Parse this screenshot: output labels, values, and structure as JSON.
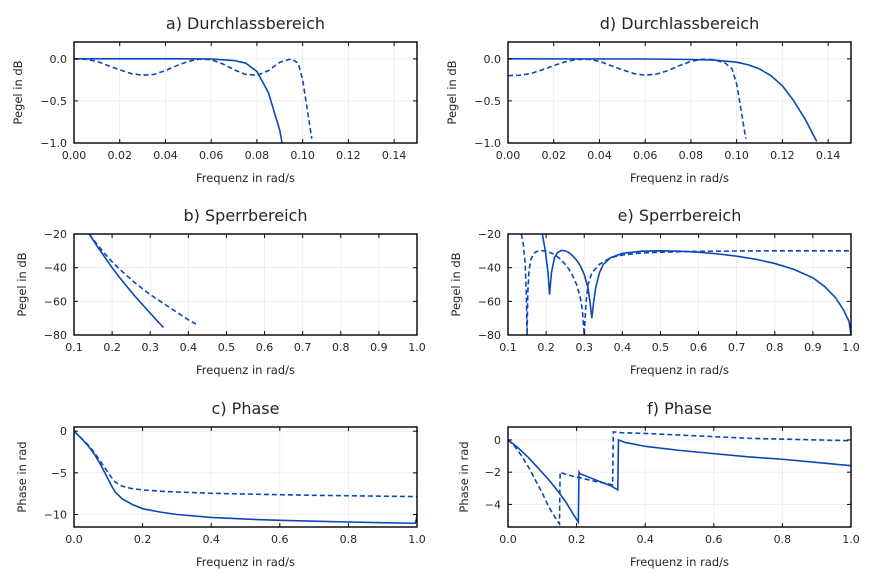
{
  "colors": {
    "series": "#0a47b7",
    "grid": "#ebebeb"
  },
  "chart_data": [
    {
      "id": "a",
      "type": "line",
      "title": "a) Durchlassbereich",
      "xlabel": "Frequenz in rad/s",
      "ylabel": "Pegel in dB",
      "xlim": [
        0,
        0.15
      ],
      "ylim": [
        -1,
        0.2
      ],
      "xticks": [
        0,
        0.02,
        0.04,
        0.06,
        0.08,
        0.1,
        0.12,
        0.14
      ],
      "xticklabels": [
        "0.00",
        "0.02",
        "0.04",
        "0.06",
        "0.08",
        "0.10",
        "0.12",
        "0.14"
      ],
      "yticks": [
        -1,
        -0.5,
        0
      ],
      "yticklabels": [
        "−1.0",
        "−0.5",
        "0.0"
      ],
      "series": [
        {
          "style": "solid",
          "x": [
            0,
            0.05,
            0.06,
            0.07,
            0.075,
            0.08,
            0.085,
            0.09,
            0.091
          ],
          "y": [
            0,
            0,
            -0.002,
            -0.02,
            -0.05,
            -0.15,
            -0.4,
            -0.85,
            -1.0
          ]
        },
        {
          "style": "dashed",
          "x": [
            0,
            0.005,
            0.01,
            0.015,
            0.02,
            0.025,
            0.03,
            0.035,
            0.04,
            0.045,
            0.05,
            0.055,
            0.06,
            0.065,
            0.07,
            0.075,
            0.08,
            0.085,
            0.09,
            0.095,
            0.098,
            0.1,
            0.102,
            0.104
          ],
          "y": [
            0,
            -0.005,
            -0.03,
            -0.08,
            -0.13,
            -0.175,
            -0.195,
            -0.185,
            -0.14,
            -0.08,
            -0.03,
            -0.002,
            -0.01,
            -0.06,
            -0.13,
            -0.185,
            -0.195,
            -0.14,
            -0.04,
            0,
            -0.05,
            -0.25,
            -0.6,
            -0.95
          ]
        }
      ]
    },
    {
      "id": "d",
      "type": "line",
      "title": "d) Durchlassbereich",
      "xlabel": "Frequenz in rad/s",
      "ylabel": "Pegel in dB",
      "xlim": [
        0,
        0.15
      ],
      "ylim": [
        -1,
        0.2
      ],
      "xticks": [
        0,
        0.02,
        0.04,
        0.06,
        0.08,
        0.1,
        0.12,
        0.14
      ],
      "xticklabels": [
        "0.00",
        "0.02",
        "0.04",
        "0.06",
        "0.08",
        "0.10",
        "0.12",
        "0.14"
      ],
      "yticks": [
        -1,
        -0.5,
        0
      ],
      "yticklabels": [
        "−1.0",
        "−0.5",
        "0.0"
      ],
      "series": [
        {
          "style": "solid",
          "x": [
            0,
            0.06,
            0.08,
            0.09,
            0.1,
            0.105,
            0.11,
            0.115,
            0.12,
            0.125,
            0.13,
            0.135
          ],
          "y": [
            0,
            -0.002,
            -0.008,
            -0.015,
            -0.04,
            -0.07,
            -0.12,
            -0.2,
            -0.32,
            -0.5,
            -0.72,
            -0.98
          ]
        },
        {
          "style": "dashed",
          "x": [
            0,
            0.005,
            0.01,
            0.015,
            0.02,
            0.025,
            0.03,
            0.035,
            0.04,
            0.045,
            0.05,
            0.055,
            0.06,
            0.065,
            0.07,
            0.075,
            0.08,
            0.085,
            0.09,
            0.095,
            0.098,
            0.1,
            0.102,
            0.104
          ],
          "y": [
            -0.2,
            -0.195,
            -0.175,
            -0.13,
            -0.08,
            -0.035,
            -0.008,
            -0.005,
            -0.03,
            -0.08,
            -0.13,
            -0.175,
            -0.195,
            -0.18,
            -0.14,
            -0.08,
            -0.03,
            -0.005,
            -0.01,
            -0.05,
            -0.12,
            -0.3,
            -0.62,
            -0.95
          ]
        }
      ]
    },
    {
      "id": "b",
      "type": "line",
      "title": "b) Sperrbereich",
      "xlabel": "Frequenz in rad/s",
      "ylabel": "Pegel in dB",
      "xlim": [
        0.1,
        1.0
      ],
      "ylim": [
        -80,
        -20
      ],
      "xticks": [
        0.1,
        0.2,
        0.3,
        0.4,
        0.5,
        0.6,
        0.7,
        0.8,
        0.9,
        1.0
      ],
      "xticklabels": [
        "0.1",
        "0.2",
        "0.3",
        "0.4",
        "0.5",
        "0.6",
        "0.7",
        "0.8",
        "0.9",
        "1.0"
      ],
      "yticks": [
        -80,
        -60,
        -40,
        -20
      ],
      "yticklabels": [
        "−80",
        "−60",
        "−40",
        "−20"
      ],
      "series": [
        {
          "style": "solid",
          "x": [
            0.14,
            0.16,
            0.18,
            0.2,
            0.22,
            0.24,
            0.26,
            0.28,
            0.3,
            0.32,
            0.335
          ],
          "y": [
            -20,
            -27,
            -33.5,
            -40,
            -46,
            -51.5,
            -57,
            -62,
            -67,
            -72,
            -75.5
          ]
        },
        {
          "style": "dashed",
          "x": [
            0.14,
            0.16,
            0.18,
            0.2,
            0.22,
            0.24,
            0.26,
            0.28,
            0.3,
            0.32,
            0.34,
            0.36,
            0.38,
            0.4,
            0.42
          ],
          "y": [
            -20,
            -26,
            -31.5,
            -36.5,
            -41,
            -45,
            -49,
            -52.5,
            -56,
            -59,
            -62,
            -65,
            -68,
            -71,
            -73.5
          ]
        }
      ]
    },
    {
      "id": "e",
      "type": "line",
      "title": "e) Sperrbereich",
      "xlabel": "Frequenz in rad/s",
      "ylabel": "Pegel in dB",
      "xlim": [
        0.1,
        1.0
      ],
      "ylim": [
        -80,
        -20
      ],
      "xticks": [
        0.1,
        0.2,
        0.3,
        0.4,
        0.5,
        0.6,
        0.7,
        0.8,
        0.9,
        1.0
      ],
      "xticklabels": [
        "0.1",
        "0.2",
        "0.3",
        "0.4",
        "0.5",
        "0.6",
        "0.7",
        "0.8",
        "0.9",
        "1.0"
      ],
      "yticks": [
        -80,
        -60,
        -40,
        -20
      ],
      "yticklabels": [
        "−80",
        "−60",
        "−40",
        "−20"
      ],
      "series": [
        {
          "style": "solid",
          "x": [
            0.19,
            0.198,
            0.205,
            0.209,
            0.214,
            0.222,
            0.23,
            0.24,
            0.25,
            0.26,
            0.27,
            0.28,
            0.29,
            0.3,
            0.31,
            0.315,
            0.32,
            0.325,
            0.33,
            0.34,
            0.35,
            0.37,
            0.4,
            0.45,
            0.5,
            0.55,
            0.6,
            0.65,
            0.7,
            0.75,
            0.8,
            0.85,
            0.9,
            0.93,
            0.96,
            0.98,
            0.995,
            1.0
          ],
          "y": [
            -20,
            -30,
            -43,
            -56,
            -43,
            -34,
            -31,
            -29.8,
            -30,
            -31,
            -33,
            -35.5,
            -39,
            -44,
            -52,
            -60,
            -70,
            -60,
            -52,
            -43,
            -38,
            -34,
            -31.5,
            -30.2,
            -30,
            -30.2,
            -30.8,
            -31.8,
            -33.2,
            -35,
            -37.5,
            -41,
            -46,
            -51,
            -58,
            -65,
            -72,
            -80
          ]
        },
        {
          "style": "dashed",
          "x": [
            0.135,
            0.14,
            0.145,
            0.148,
            0.15,
            0.152,
            0.155,
            0.16,
            0.17,
            0.18,
            0.19,
            0.2,
            0.21,
            0.22,
            0.23,
            0.24,
            0.25,
            0.26,
            0.27,
            0.28,
            0.29,
            0.295,
            0.3,
            0.302,
            0.305,
            0.31,
            0.32,
            0.34,
            0.37,
            0.4,
            0.45,
            0.5,
            0.6,
            0.7,
            0.8,
            0.9,
            1.0
          ],
          "y": [
            -20,
            -26,
            -37,
            -55,
            -80,
            -55,
            -42,
            -35,
            -31,
            -30,
            -29.9,
            -30.2,
            -31,
            -32,
            -33.5,
            -35.5,
            -38,
            -41,
            -45,
            -50,
            -58,
            -65,
            -80,
            -72,
            -60,
            -50,
            -43,
            -38,
            -34,
            -32.5,
            -31.3,
            -30.8,
            -30.3,
            -30.1,
            -30,
            -30,
            -30
          ]
        }
      ]
    },
    {
      "id": "c",
      "type": "line",
      "title": "c) Phase",
      "xlabel": "Frequenz in rad/s",
      "ylabel": "Phase in rad",
      "xlim": [
        0,
        1.0
      ],
      "ylim": [
        -11.5,
        0.5
      ],
      "xticks": [
        0,
        0.2,
        0.4,
        0.6,
        0.8,
        1.0
      ],
      "xticklabels": [
        "0.0",
        "0.2",
        "0.4",
        "0.6",
        "0.8",
        "1.0"
      ],
      "yticks": [
        -10,
        -5,
        0
      ],
      "yticklabels": [
        "−10",
        "−5",
        "0"
      ],
      "series": [
        {
          "style": "solid",
          "x": [
            0,
            0.02,
            0.04,
            0.06,
            0.08,
            0.1,
            0.11,
            0.12,
            0.14,
            0.17,
            0.2,
            0.25,
            0.3,
            0.4,
            0.5,
            0.6,
            0.7,
            0.8,
            0.9,
            0.995,
            0.999,
            1.0
          ],
          "y": [
            0,
            -0.8,
            -1.7,
            -2.8,
            -4.2,
            -5.8,
            -6.6,
            -7.3,
            -8.1,
            -8.8,
            -9.3,
            -9.7,
            -10.0,
            -10.35,
            -10.55,
            -10.7,
            -10.8,
            -10.9,
            -10.98,
            -11.05,
            -10.4,
            -9.8
          ]
        },
        {
          "style": "dashed",
          "x": [
            0,
            0.02,
            0.04,
            0.06,
            0.08,
            0.1,
            0.11,
            0.12,
            0.14,
            0.17,
            0.2,
            0.25,
            0.3,
            0.4,
            0.5,
            0.6,
            0.7,
            0.8,
            0.9,
            1.0
          ],
          "y": [
            0,
            -0.8,
            -1.6,
            -2.6,
            -3.8,
            -5.0,
            -5.6,
            -6.1,
            -6.6,
            -6.9,
            -7.05,
            -7.2,
            -7.3,
            -7.45,
            -7.55,
            -7.62,
            -7.7,
            -7.75,
            -7.8,
            -7.85
          ]
        }
      ]
    },
    {
      "id": "f",
      "type": "line",
      "title": "f) Phase",
      "xlabel": "Frequenz in rad/s",
      "ylabel": "Phase in rad",
      "xlim": [
        0,
        1.0
      ],
      "ylim": [
        -5.4,
        0.8
      ],
      "xticks": [
        0,
        0.2,
        0.4,
        0.6,
        0.8,
        1.0
      ],
      "xticklabels": [
        "0.0",
        "0.2",
        "0.4",
        "0.6",
        "0.8",
        "1.0"
      ],
      "yticks": [
        -4,
        -2,
        0
      ],
      "yticklabels": [
        "−4",
        "−2",
        "0"
      ],
      "series": [
        {
          "style": "solid",
          "x": [
            0,
            0.03,
            0.06,
            0.09,
            0.12,
            0.15,
            0.17,
            0.19,
            0.205,
            0.207,
            0.21,
            0.24,
            0.27,
            0.3,
            0.32,
            0.322,
            0.34,
            0.4,
            0.5,
            0.6,
            0.7,
            0.8,
            0.9,
            1.0
          ],
          "y": [
            0,
            -0.5,
            -1.1,
            -1.8,
            -2.5,
            -3.3,
            -3.9,
            -4.6,
            -5.1,
            -2.0,
            -2.1,
            -2.35,
            -2.6,
            -2.85,
            -3.1,
            0.0,
            -0.15,
            -0.4,
            -0.65,
            -0.85,
            -1.05,
            -1.2,
            -1.4,
            -1.6
          ]
        },
        {
          "style": "dashed",
          "x": [
            0,
            0.02,
            0.04,
            0.06,
            0.08,
            0.1,
            0.12,
            0.14,
            0.15,
            0.152,
            0.17,
            0.2,
            0.23,
            0.26,
            0.29,
            0.305,
            0.307,
            0.33,
            0.4,
            0.5,
            0.6,
            0.7,
            0.8,
            0.9,
            1.0
          ],
          "y": [
            0,
            -0.4,
            -1.0,
            -1.7,
            -2.5,
            -3.3,
            -4.2,
            -4.9,
            -5.2,
            -2.0,
            -2.15,
            -2.3,
            -2.45,
            -2.6,
            -2.7,
            -2.8,
            0.5,
            0.45,
            0.4,
            0.3,
            0.2,
            0.1,
            0.05,
            0.0,
            -0.05
          ]
        }
      ]
    }
  ]
}
